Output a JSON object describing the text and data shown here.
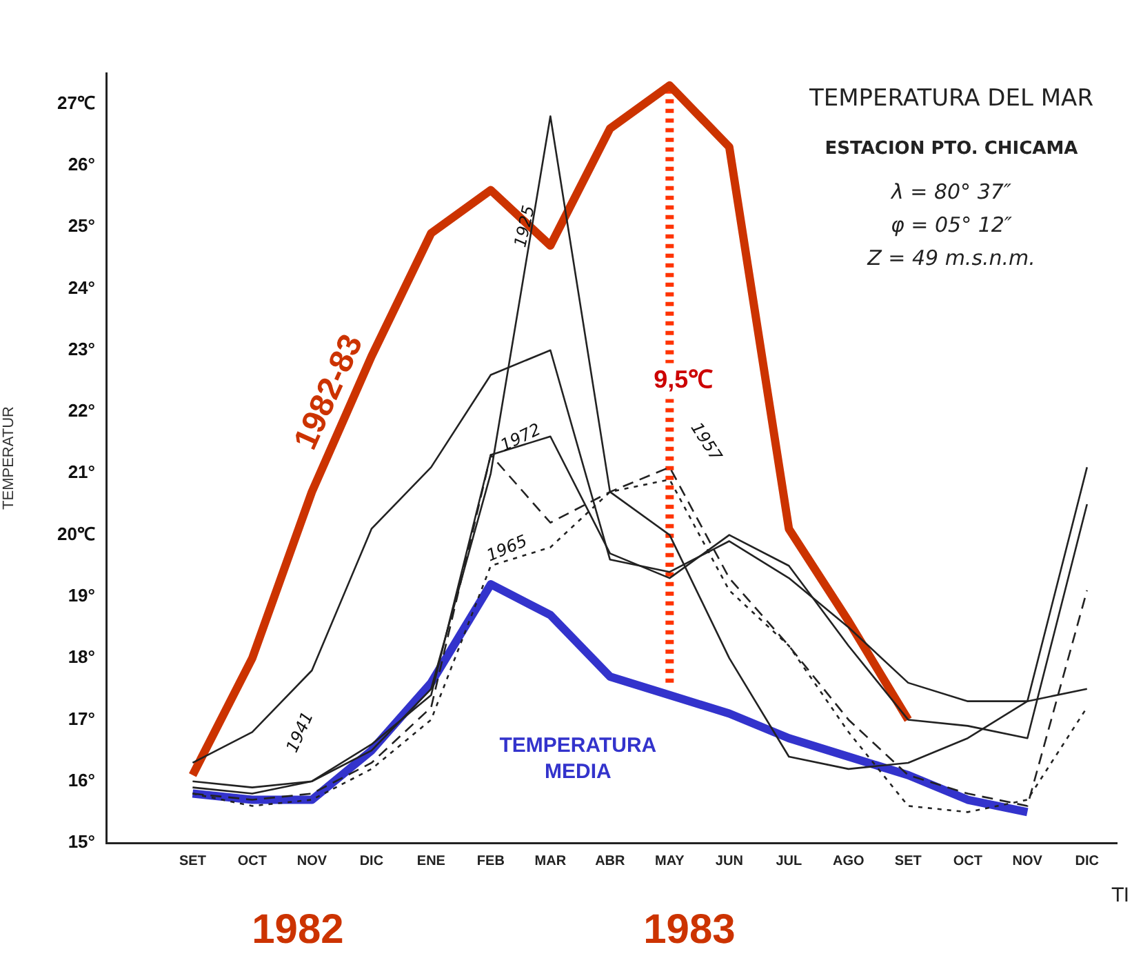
{
  "chart_data": {
    "type": "line",
    "title": "TEMPERATURA DEL MAR",
    "subtitle": "ESTACION PTO. CHICAMA",
    "xlabel": "TI",
    "ylabel": "TEMPERATUR",
    "categories": [
      "SET",
      "OCT",
      "NOV",
      "DIC",
      "ENE",
      "FEB",
      "MAR",
      "ABR",
      "MAY",
      "JUN",
      "JUL",
      "AGO",
      "SET",
      "OCT",
      "NOV",
      "DIC"
    ],
    "ylim": [
      15,
      27.5
    ],
    "yticks": [
      {
        "value": 15,
        "label": "15°"
      },
      {
        "value": 16,
        "label": "16°"
      },
      {
        "value": 17,
        "label": "17°"
      },
      {
        "value": 18,
        "label": "18°"
      },
      {
        "value": 19,
        "label": "19°"
      },
      {
        "value": 20,
        "label": "20℃"
      },
      {
        "value": 21,
        "label": "21°"
      },
      {
        "value": 22,
        "label": "22°"
      },
      {
        "value": 23,
        "label": "23°"
      },
      {
        "value": 24,
        "label": "24°"
      },
      {
        "value": 25,
        "label": "25°"
      },
      {
        "value": 26,
        "label": "26°"
      },
      {
        "value": 27,
        "label": "27℃"
      }
    ],
    "series": [
      {
        "name": "1925",
        "color": "#222222",
        "line_style": "solid",
        "values": [
          16.0,
          15.9,
          16.0,
          16.5,
          17.5,
          21.0,
          26.8,
          20.7,
          20.0,
          18.0,
          16.4,
          16.2,
          16.3,
          16.7,
          17.3,
          21.1
        ]
      },
      {
        "name": "1941",
        "color": "#222222",
        "line_style": "solid",
        "values": [
          16.3,
          16.8,
          17.8,
          20.1,
          21.1,
          22.6,
          23.0,
          19.6,
          19.4,
          19.9,
          19.3,
          18.5,
          17.6,
          17.3,
          17.3,
          17.5
        ]
      },
      {
        "name": "1972",
        "color": "#222222",
        "line_style": "solid",
        "values": [
          15.9,
          15.8,
          16.0,
          16.6,
          17.4,
          21.3,
          21.6,
          19.7,
          19.3,
          20.0,
          19.5,
          18.2,
          17.0,
          16.9,
          16.7,
          20.5
        ]
      },
      {
        "name": "1957",
        "color": "#222222",
        "line_style": "dashed",
        "values": [
          15.8,
          15.7,
          15.8,
          16.3,
          17.2,
          21.3,
          20.2,
          20.7,
          21.1,
          19.3,
          18.2,
          17.0,
          16.1,
          15.8,
          15.6,
          19.1
        ]
      },
      {
        "name": "1965",
        "color": "#222222",
        "line_style": "dotted",
        "values": [
          15.8,
          15.6,
          15.7,
          16.2,
          17.0,
          19.5,
          19.8,
          20.7,
          20.9,
          19.1,
          18.2,
          16.8,
          15.6,
          15.5,
          15.7,
          17.2
        ]
      },
      {
        "name": "1982-83",
        "color": "#cc3300",
        "line_style": "solid",
        "values": [
          16.1,
          18.0,
          20.7,
          22.9,
          24.9,
          25.6,
          24.7,
          26.6,
          27.3,
          26.3,
          20.1,
          18.6,
          17.0,
          null,
          null,
          null
        ]
      },
      {
        "name": "TEMPERATURA MEDIA",
        "color": "#3333cc",
        "line_style": "solid",
        "values": [
          15.8,
          15.7,
          15.7,
          16.5,
          17.6,
          19.2,
          18.7,
          17.7,
          17.4,
          17.1,
          16.7,
          16.4,
          16.1,
          15.7,
          15.5,
          null
        ]
      },
      {
        "color": "#ff3300",
        "line_style": "dotted",
        "x": [
          "MAY",
          "MAY"
        ],
        "values": [
          17.6,
          27.3
        ]
      }
    ],
    "annotations": [
      {
        "text": "9,5℃",
        "x": "MAY",
        "y": 22.5
      },
      "1982",
      "1983",
      "λ = 80° 37″",
      "φ = 05° 12″",
      "Z = 49 m.s.n.m."
    ],
    "grid": false,
    "legend": false
  }
}
